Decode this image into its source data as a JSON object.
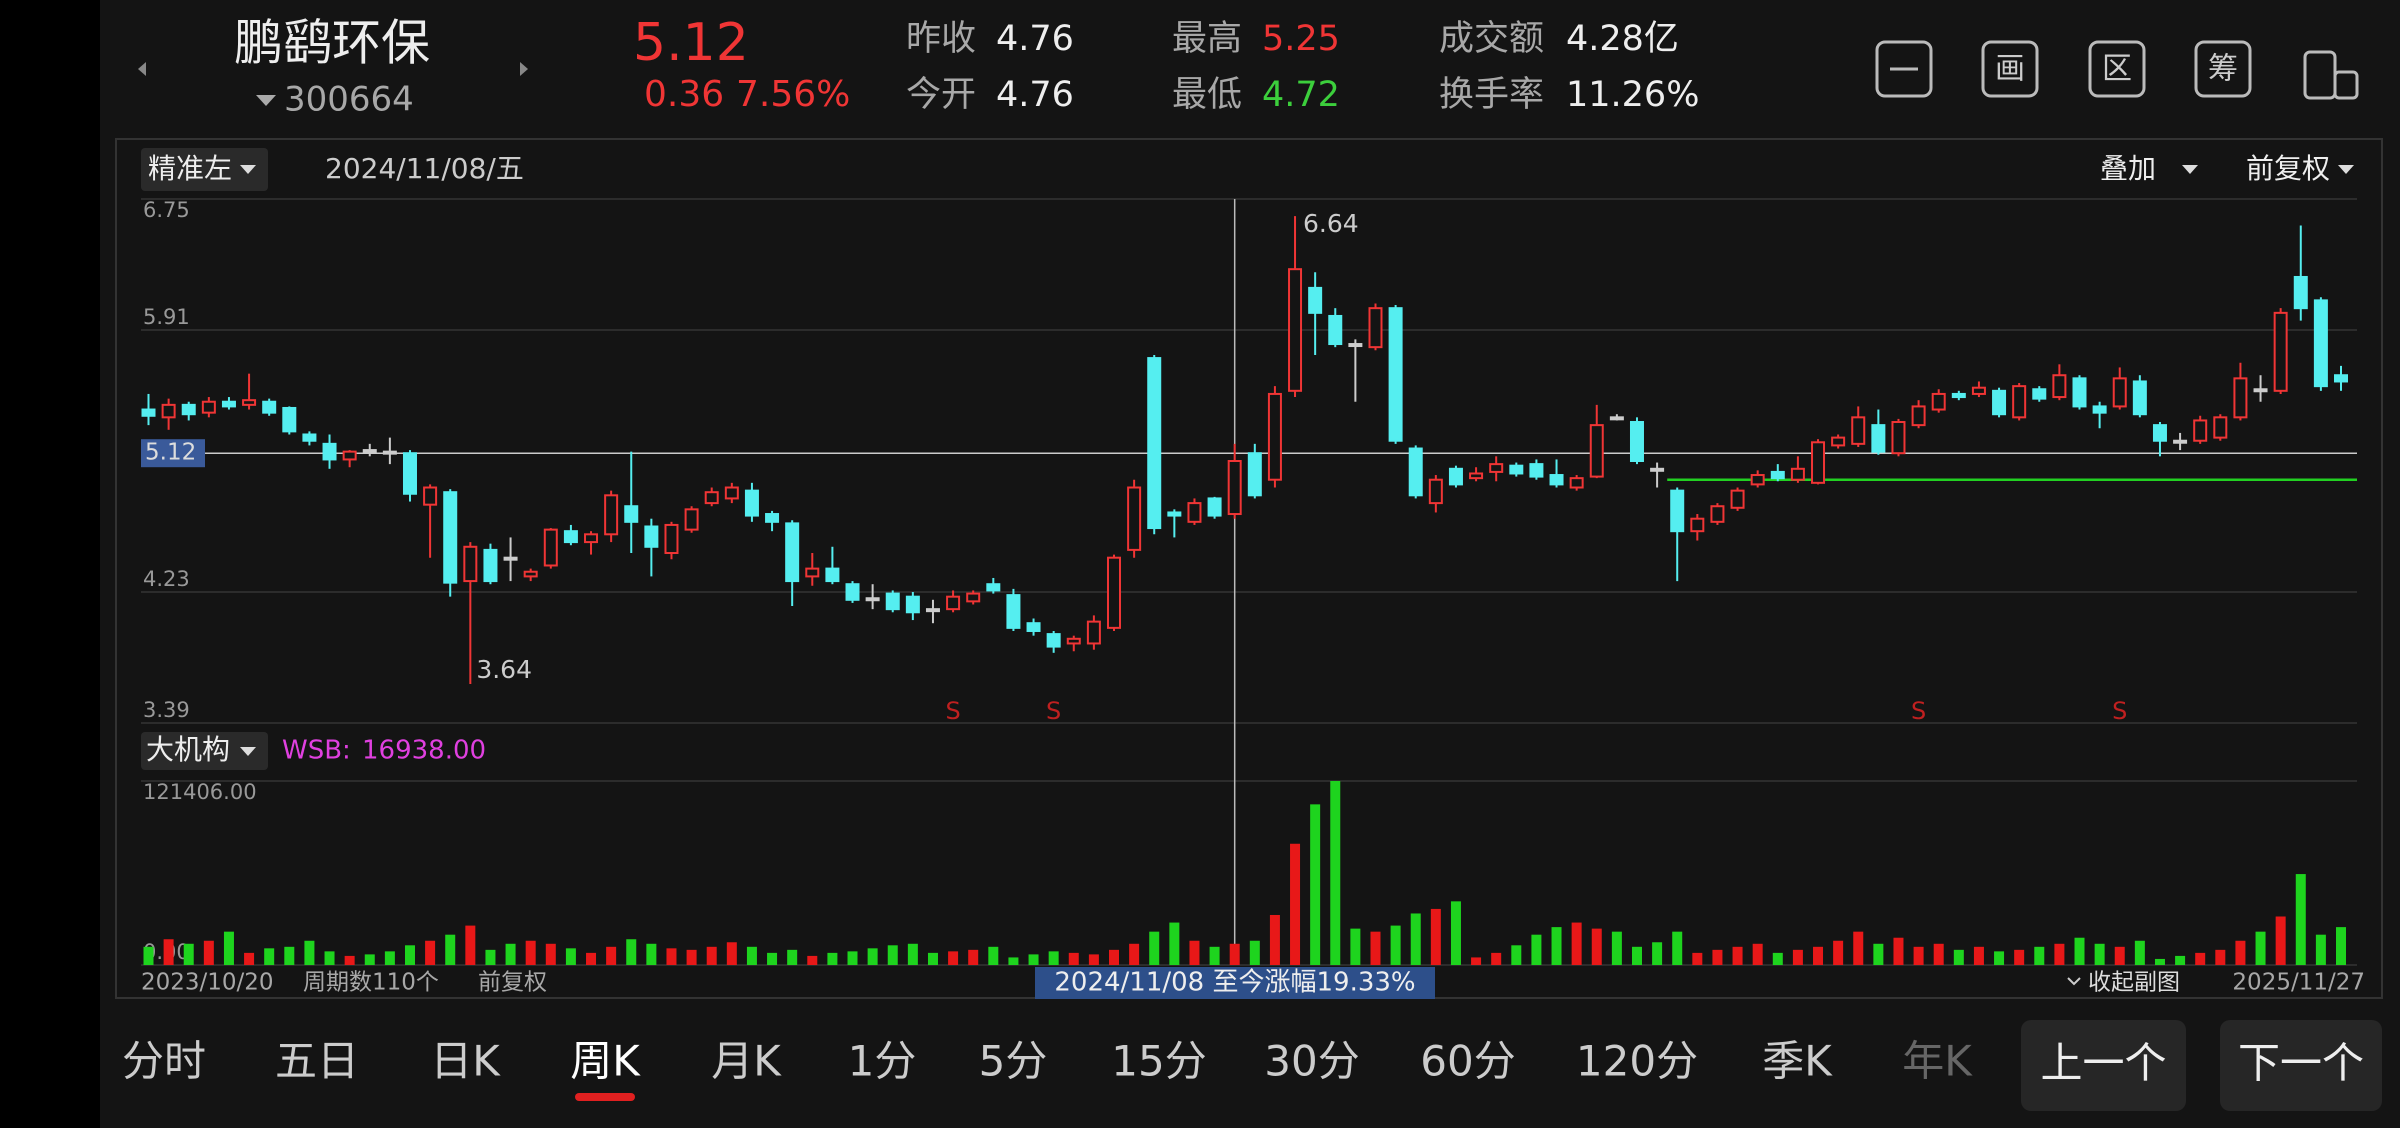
{
  "header": {
    "name": "鹏鹞环保",
    "code": "300664",
    "price": 5.12,
    "change": 0.36,
    "change_pct": "7.56%",
    "stats": [
      {
        "label": "昨收",
        "value": 4.76
      },
      {
        "label": "今开",
        "value": 4.76
      },
      {
        "label": "最高",
        "value": 5.25
      },
      {
        "label": "最低",
        "value": 4.72
      },
      {
        "label": "成交额",
        "value": "4.28亿"
      },
      {
        "label": "换手率",
        "value": "11.26%"
      }
    ],
    "icons": [
      "画",
      "区",
      "筹"
    ]
  },
  "chart_data": {
    "type": "candlestick",
    "indicator": "精准左",
    "date": "2024/11/08/五",
    "overlay": "叠加",
    "adjust": "前复权",
    "ylim": [
      3.39,
      6.75
    ],
    "yticks": [
      6.75,
      5.91,
      4.23,
      3.39
    ],
    "last_price": 5.12,
    "support_line": 4.95,
    "open": [
      5.4,
      5.35,
      5.43,
      5.38,
      5.45,
      5.43,
      5.45,
      5.41,
      5.24,
      5.18,
      5.08,
      5.14,
      5.13,
      5.12,
      4.79,
      4.87,
      4.3,
      4.5,
      4.45,
      4.33,
      4.4,
      4.62,
      4.55,
      4.6,
      4.78,
      4.65,
      4.48,
      4.63,
      4.8,
      4.83,
      4.88,
      4.73,
      4.67,
      4.33,
      4.38,
      4.28,
      4.19,
      4.22,
      4.2,
      4.12,
      4.12,
      4.17,
      4.28,
      4.21,
      4.03,
      3.96,
      3.9,
      3.9,
      4.0,
      4.5,
      5.73,
      4.74,
      4.68,
      4.83,
      4.73,
      5.12,
      4.95,
      5.52,
      6.18,
      6.0,
      5.82,
      5.8,
      6.05,
      5.15,
      4.8,
      5.02,
      4.96,
      5.0,
      5.04,
      5.05,
      4.98,
      4.9,
      4.97,
      5.35,
      5.32,
      5.02,
      4.88,
      4.62,
      4.68,
      4.77,
      4.92,
      5.0,
      4.95,
      4.93,
      5.17,
      5.18,
      5.3,
      5.12,
      5.3,
      5.4,
      5.5,
      5.5,
      5.52,
      5.35,
      5.53,
      5.48,
      5.6,
      5.42,
      5.42,
      5.58,
      5.3,
      5.2,
      5.2,
      5.22,
      5.35,
      5.53,
      5.52,
      6.25,
      6.1,
      5.62
    ],
    "close": [
      5.36,
      5.43,
      5.37,
      5.45,
      5.42,
      5.46,
      5.38,
      5.26,
      5.2,
      5.08,
      5.13,
      5.14,
      5.13,
      4.86,
      4.9,
      4.29,
      4.52,
      4.3,
      4.45,
      4.36,
      4.63,
      4.55,
      4.6,
      4.85,
      4.68,
      4.52,
      4.66,
      4.76,
      4.87,
      4.9,
      4.72,
      4.68,
      4.3,
      4.38,
      4.3,
      4.18,
      4.19,
      4.12,
      4.1,
      4.12,
      4.2,
      4.22,
      4.24,
      4.0,
      3.98,
      3.88,
      3.93,
      4.04,
      4.45,
      4.9,
      4.64,
      4.72,
      4.8,
      4.72,
      5.07,
      4.85,
      5.5,
      6.3,
      6.02,
      5.82,
      5.82,
      6.05,
      5.2,
      4.85,
      4.95,
      4.92,
      4.99,
      5.05,
      4.99,
      4.97,
      4.92,
      4.96,
      5.3,
      5.35,
      5.07,
      5.02,
      4.62,
      4.7,
      4.78,
      4.88,
      4.98,
      4.96,
      5.02,
      5.19,
      5.22,
      5.35,
      5.13,
      5.32,
      5.42,
      5.5,
      5.48,
      5.54,
      5.37,
      5.55,
      5.47,
      5.62,
      5.42,
      5.38,
      5.6,
      5.37,
      5.2,
      5.2,
      5.33,
      5.35,
      5.6,
      5.53,
      6.02,
      6.05,
      5.55,
      5.58
    ],
    "high": [
      5.5,
      5.47,
      5.45,
      5.48,
      5.48,
      5.63,
      5.47,
      5.42,
      5.26,
      5.24,
      5.14,
      5.18,
      5.22,
      5.14,
      4.92,
      4.89,
      4.55,
      4.54,
      4.58,
      4.38,
      4.64,
      4.66,
      4.62,
      4.88,
      5.13,
      4.7,
      4.68,
      4.78,
      4.9,
      4.93,
      4.93,
      4.75,
      4.69,
      4.48,
      4.52,
      4.3,
      4.28,
      4.24,
      4.23,
      4.18,
      4.24,
      4.24,
      4.32,
      4.25,
      4.06,
      3.98,
      3.95,
      4.08,
      4.47,
      4.95,
      5.75,
      4.76,
      4.83,
      4.84,
      5.18,
      5.18,
      5.55,
      6.64,
      6.28,
      6.05,
      5.85,
      6.08,
      6.07,
      5.17,
      4.98,
      5.04,
      5.03,
      5.1,
      5.06,
      5.08,
      5.08,
      4.98,
      5.43,
      5.37,
      5.35,
      5.06,
      4.9,
      4.73,
      4.8,
      4.9,
      5.01,
      5.05,
      5.1,
      5.21,
      5.24,
      5.42,
      5.4,
      5.34,
      5.46,
      5.53,
      5.52,
      5.58,
      5.54,
      5.57,
      5.55,
      5.69,
      5.62,
      5.45,
      5.67,
      5.62,
      5.32,
      5.25,
      5.36,
      5.37,
      5.7,
      5.62,
      6.05,
      6.58,
      6.12,
      5.68
    ],
    "low": [
      5.3,
      5.27,
      5.33,
      5.35,
      5.4,
      5.4,
      5.36,
      5.24,
      5.17,
      5.02,
      5.03,
      5.1,
      5.05,
      4.81,
      4.45,
      4.2,
      3.64,
      4.28,
      4.3,
      4.3,
      4.38,
      4.53,
      4.47,
      4.55,
      4.48,
      4.33,
      4.44,
      4.61,
      4.78,
      4.8,
      4.68,
      4.62,
      4.14,
      4.27,
      4.28,
      4.16,
      4.12,
      4.1,
      4.05,
      4.03,
      4.1,
      4.15,
      4.22,
      3.98,
      3.95,
      3.84,
      3.85,
      3.86,
      3.98,
      4.45,
      4.6,
      4.58,
      4.66,
      4.7,
      4.7,
      4.83,
      4.9,
      5.48,
      5.75,
      5.8,
      5.45,
      5.78,
      5.18,
      4.83,
      4.74,
      4.9,
      4.94,
      4.94,
      4.97,
      4.95,
      4.9,
      4.88,
      4.96,
      5.33,
      5.05,
      4.9,
      4.3,
      4.56,
      4.66,
      4.75,
      4.9,
      4.94,
      4.93,
      4.92,
      5.15,
      5.16,
      5.11,
      5.1,
      5.28,
      5.38,
      5.46,
      5.48,
      5.35,
      5.33,
      5.45,
      5.46,
      5.4,
      5.28,
      5.4,
      5.35,
      5.1,
      5.14,
      5.18,
      5.2,
      5.33,
      5.45,
      5.5,
      5.97,
      5.52,
      5.52
    ],
    "signals": [
      null,
      null,
      null,
      null,
      null,
      null,
      null,
      null,
      null,
      null,
      null,
      null,
      null,
      null,
      null,
      null,
      null,
      null,
      null,
      null,
      null,
      null,
      null,
      null,
      null,
      null,
      null,
      null,
      null,
      null,
      null,
      null,
      null,
      null,
      null,
      null,
      null,
      null,
      null,
      null,
      "S",
      null,
      null,
      null,
      null,
      "S",
      null,
      null,
      null,
      null,
      null,
      null,
      null,
      null,
      null,
      null,
      null,
      null,
      null,
      null,
      null,
      null,
      null,
      null,
      null,
      null,
      null,
      null,
      null,
      null,
      null,
      null,
      null,
      null,
      null,
      null,
      null,
      null,
      null,
      null,
      null,
      null,
      null,
      null,
      null,
      null,
      null,
      null,
      "S",
      null,
      null,
      null,
      null,
      null,
      null,
      null,
      null,
      null,
      "S",
      null,
      null,
      null,
      null,
      null,
      null,
      null,
      null,
      null,
      null,
      null
    ],
    "volume": {
      "indicator": "大机构",
      "label": "WSB:",
      "value": "16938.00",
      "ylim": [
        0,
        121406
      ],
      "yticks": [
        {
          "value": 121406,
          "label": "121406.00"
        },
        {
          "value": 0,
          "label": "0.00"
        }
      ],
      "values": [
        12000,
        17000,
        14000,
        16000,
        22000,
        8000,
        11000,
        12000,
        16000,
        9000,
        6000,
        7000,
        9000,
        13000,
        16000,
        20000,
        26000,
        10000,
        14000,
        16000,
        14000,
        11000,
        8000,
        12000,
        17000,
        14000,
        11000,
        10000,
        12000,
        15000,
        12000,
        8000,
        10000,
        6000,
        8000,
        9000,
        11000,
        13000,
        14000,
        8000,
        9000,
        10000,
        12000,
        5000,
        7000,
        9000,
        8000,
        7000,
        10000,
        14000,
        22000,
        28000,
        16000,
        12000,
        14000,
        16000,
        33000,
        80000,
        106000,
        121406,
        24000,
        22000,
        26000,
        34000,
        37000,
        42000,
        5000,
        8000,
        13000,
        20000,
        25000,
        28000,
        24000,
        22000,
        12000,
        15000,
        22000,
        8000,
        10000,
        12000,
        14000,
        8000,
        10000,
        12000,
        16000,
        22000,
        14000,
        18000,
        12000,
        14000,
        10000,
        12000,
        9000,
        10000,
        12000,
        14000,
        18000,
        14000,
        12000,
        16000,
        4000,
        6000,
        8000,
        10000,
        16000,
        22000,
        32000,
        60000,
        20000,
        25000
      ]
    },
    "footer": {
      "start": "2023/10/20",
      "periods": "周期数110个",
      "adjust": "前复权",
      "range_gain": "2024/11/08 至今涨幅19.33%",
      "collapse": "收起副图",
      "end": "2025/11/27"
    }
  },
  "tabs": [
    "分时",
    "五日",
    "日K",
    "周K",
    "月K",
    "1分",
    "5分",
    "15分",
    "30分",
    "60分",
    "120分",
    "季K",
    "年K"
  ],
  "buttons": [
    "上一个",
    "下一个"
  ]
}
